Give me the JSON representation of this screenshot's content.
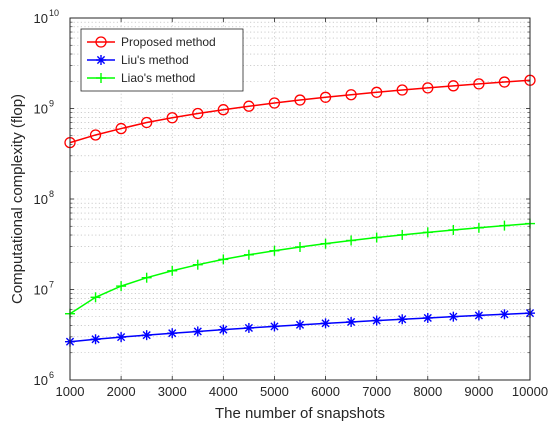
{
  "chart_data": {
    "type": "line",
    "title": "",
    "xlabel": "The number of snapshots",
    "ylabel": "Computational complexity (flop)",
    "xlim": [
      1000,
      10000
    ],
    "ylim": [
      1000000,
      10000000000
    ],
    "yscale": "log",
    "grid": true,
    "legend_position": "top-left",
    "x": [
      1000,
      1500,
      2000,
      2500,
      3000,
      3500,
      4000,
      4500,
      5000,
      5500,
      6000,
      6500,
      7000,
      7500,
      8000,
      8500,
      9000,
      9500,
      10000
    ],
    "xticks": [
      "1000",
      "2000",
      "3000",
      "4000",
      "5000",
      "6000",
      "7000",
      "8000",
      "9000",
      "10000"
    ],
    "yticks": [
      {
        "base": "10",
        "exp": "6"
      },
      {
        "base": "10",
        "exp": "7"
      },
      {
        "base": "10",
        "exp": "8"
      },
      {
        "base": "10",
        "exp": "9"
      },
      {
        "base": "10",
        "exp": "10"
      }
    ],
    "series": [
      {
        "name": "Proposed method",
        "color": "#ff0000",
        "marker": "circle",
        "values": [
          420000000,
          510000000,
          600000000,
          700000000,
          790000000,
          880000000,
          970000000,
          1060000000,
          1150000000,
          1240000000,
          1330000000,
          1420000000,
          1510000000,
          1600000000,
          1690000000,
          1780000000,
          1870000000,
          1960000000,
          2050000000
        ]
      },
      {
        "name": "Liu's method",
        "color": "#0000ff",
        "marker": "asterisk",
        "values": [
          2650000,
          2820000,
          2980000,
          3130000,
          3290000,
          3440000,
          3600000,
          3760000,
          3910000,
          4070000,
          4230000,
          4380000,
          4540000,
          4690000,
          4850000,
          5010000,
          5170000,
          5320000,
          5480000
        ]
      },
      {
        "name": "Liao's method",
        "color": "#00ff00",
        "marker": "plus",
        "values": [
          5400000,
          8200000,
          10900000,
          13500000,
          16100000,
          18800000,
          21500000,
          24200000,
          26800000,
          29500000,
          32100000,
          34800000,
          37500000,
          40100000,
          42800000,
          45500000,
          48100000,
          50800000,
          53500000
        ]
      }
    ]
  }
}
